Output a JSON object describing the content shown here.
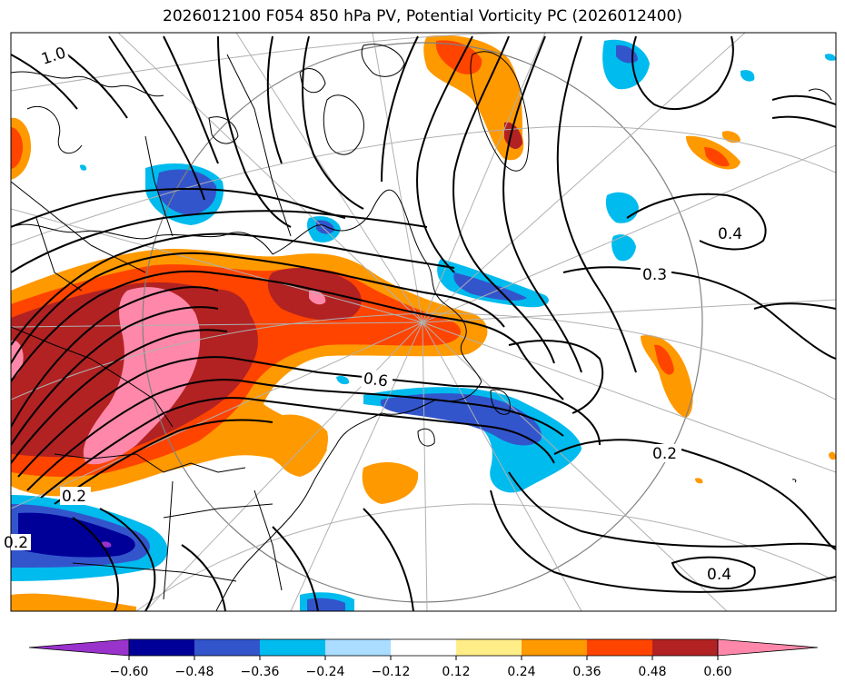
{
  "title": "2026012100 F054 850 hPa PV, Potential Vorticity PC (2026012400)",
  "contour_labels": [
    "1.0",
    "0.4",
    "0.3",
    "0.6",
    "0.2",
    "0.2",
    "0.4",
    "0.2"
  ],
  "colorbar": {
    "ticks": [
      "−0.60",
      "−0.48",
      "−0.36",
      "−0.24",
      "−0.12",
      "0.12",
      "0.24",
      "0.36",
      "0.48",
      "0.60"
    ],
    "under_color": "#9933cc",
    "over_color": "#ff88aa",
    "colors": [
      "#9933cc",
      "#000099",
      "#3355cc",
      "#00bbee",
      "#aaddff",
      "#ffffff",
      "#ffee88",
      "#ff9900",
      "#ff4400",
      "#b22222",
      "#ff88aa"
    ]
  },
  "shading_colors": {
    "dark_blue": "#000099",
    "blue": "#3355cc",
    "cyan": "#00bbee",
    "light_blue": "#aaddff",
    "yellow": "#ffee88",
    "orange": "#ff9900",
    "red_orange": "#ff4400",
    "dark_red": "#b22222",
    "pink": "#ff88aa",
    "purple": "#9933cc"
  }
}
